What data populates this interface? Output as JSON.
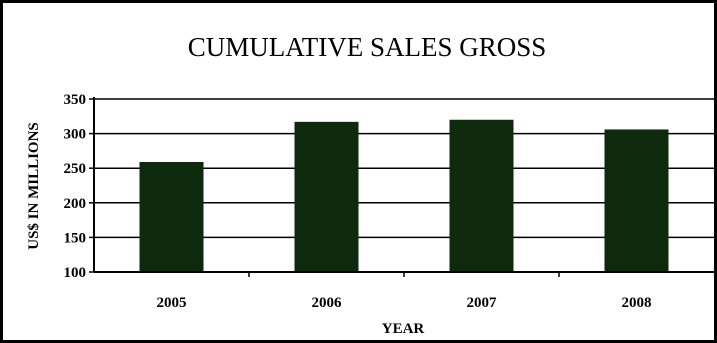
{
  "chart_data": {
    "type": "bar",
    "title": "CUMULATIVE SALES GROSS",
    "xlabel": "YEAR",
    "ylabel": "US$ IN MILLIONS",
    "categories": [
      "2005",
      "2006",
      "2007",
      "2008"
    ],
    "values": [
      259,
      317,
      320,
      306
    ],
    "ylim": [
      100,
      350
    ],
    "yticks": [
      100,
      150,
      200,
      250,
      300,
      350
    ],
    "grid": true,
    "legend": "none",
    "bar_color": "#0d2a0d"
  }
}
